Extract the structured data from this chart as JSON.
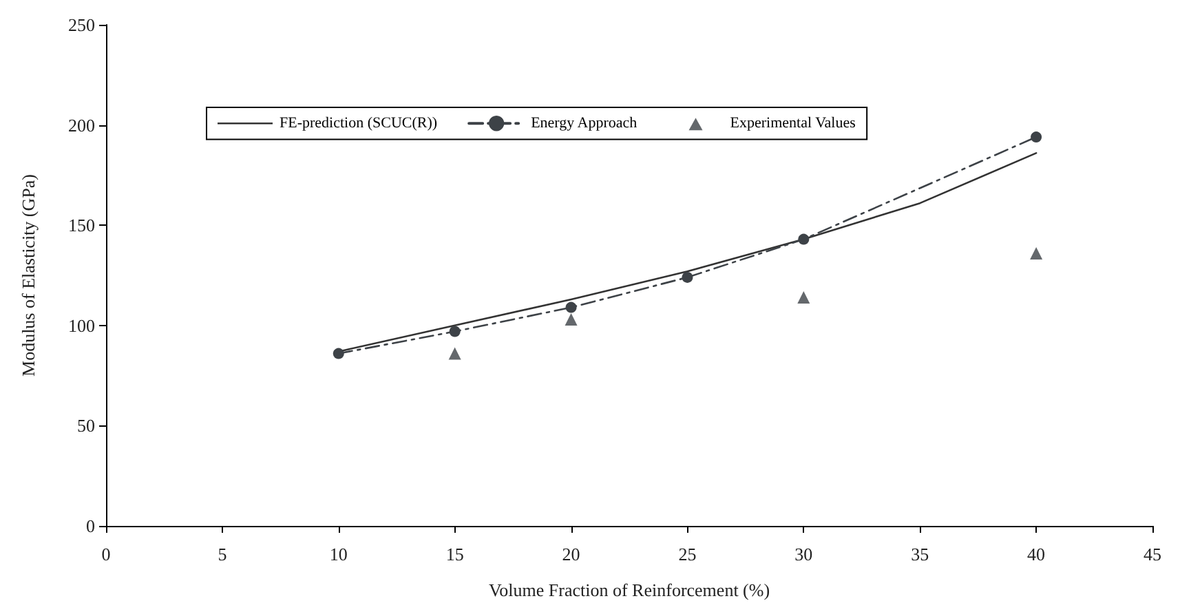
{
  "chart_data": {
    "type": "line",
    "xlabel": "Volume Fraction of Reinforcement (%)",
    "ylabel": "Modulus of Elasticity (GPa)",
    "xlim": [
      0,
      45
    ],
    "xticks": [
      0,
      5,
      10,
      15,
      20,
      25,
      30,
      35,
      40,
      45
    ],
    "ylim": [
      0,
      250
    ],
    "yticks": [
      0,
      50,
      100,
      150,
      200,
      250
    ],
    "grid": false,
    "legend": "top left",
    "series": [
      {
        "name": "FE-prediction (SCUC(R))",
        "color": "#333333",
        "marker": "none",
        "line_style": "solid",
        "x": [
          10,
          15,
          20,
          25,
          30,
          35,
          40
        ],
        "values": [
          87,
          100,
          113,
          127,
          143,
          161,
          186
        ]
      },
      {
        "name": "Energy Approach",
        "color": "#3d4247",
        "marker": "circle",
        "line_style": "dashed",
        "x": [
          10,
          15,
          20,
          25,
          30,
          40
        ],
        "values": [
          86,
          97,
          109,
          124,
          143,
          194
        ]
      },
      {
        "name": "Experimental Values",
        "type": "scatter",
        "color": "#3d4247",
        "marker": "triangle",
        "x": [
          15,
          20,
          30,
          40
        ],
        "values": [
          86,
          103,
          114,
          136
        ]
      }
    ]
  }
}
